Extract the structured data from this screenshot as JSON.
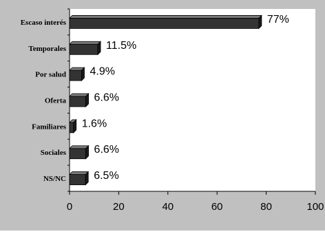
{
  "chart_data": {
    "type": "bar",
    "orientation": "horizontal",
    "bar_style": "3d",
    "categories": [
      "Escaso interés",
      "Temporales",
      "Por salud",
      "Oferta",
      "Familiares",
      "Sociales",
      "NS/NC"
    ],
    "values": [
      77,
      11.5,
      4.9,
      6.6,
      1.6,
      6.6,
      6.5
    ],
    "value_labels": [
      "77%",
      "11.5%",
      "4.9%",
      "6.6%",
      "1.6%",
      "6.6%",
      "6.5%"
    ],
    "xlim": [
      0,
      100
    ],
    "xticks": [
      0,
      20,
      40,
      60,
      80,
      100
    ],
    "grid": false,
    "legend": "none",
    "title": "",
    "xlabel": "",
    "ylabel": "",
    "colors": {
      "background": "#c0c0c0",
      "plot_area": "#ffffff",
      "bar_front": "#333333",
      "bar_top": "#7a7a7a",
      "bar_side": "#1a1a1a"
    }
  }
}
